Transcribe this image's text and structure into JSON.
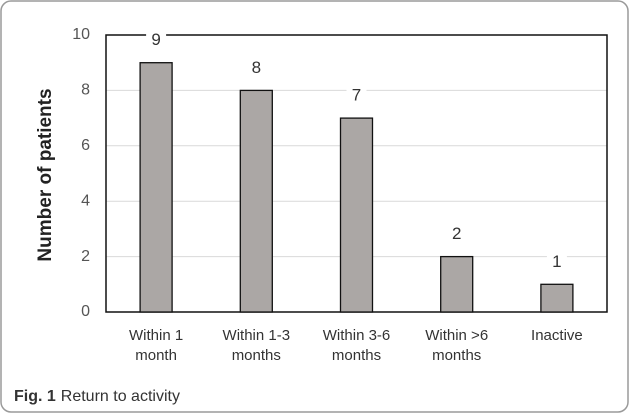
{
  "chart_data": {
    "type": "bar",
    "y_label": "Number of patients",
    "categories": [
      [
        "Within 1",
        "month"
      ],
      [
        "Within 1-3",
        "months"
      ],
      [
        "Within 3-6",
        "months"
      ],
      [
        "Within >6",
        "months"
      ],
      [
        "Inactive"
      ]
    ],
    "values": [
      9,
      8,
      7,
      2,
      1
    ],
    "color": "#aba7a5",
    "ylim": [
      0,
      10
    ],
    "yticks": [
      0,
      2,
      4,
      6,
      8,
      10
    ],
    "grid": true
  },
  "caption": {
    "label": "Fig. 1",
    "text": "Return to activity"
  }
}
